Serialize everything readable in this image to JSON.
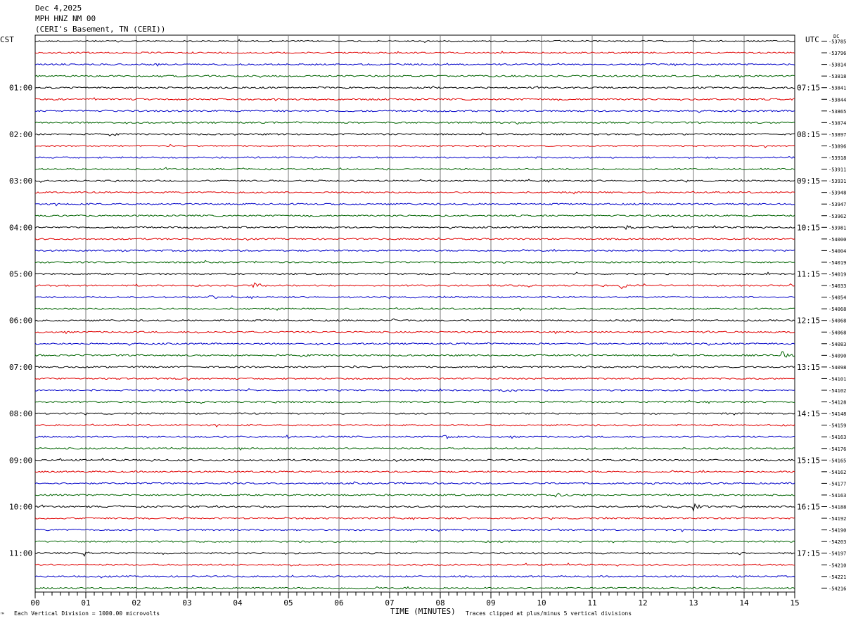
{
  "header": {
    "date": "Dec 4,2025",
    "station": "MPH HNZ NM 00",
    "location": "(CERI's Basement, TN (CERI))"
  },
  "left_tz": "CST",
  "right_tz": "UTC",
  "dc_label": "DC",
  "footer": {
    "scale": "Each Vertical Division = 1000.00 microvolts",
    "xlabel": "TIME (MINUTES)",
    "clip": "Traces clipped at plus/minus 5 vertical divisions",
    "corner_mark": "™"
  },
  "chart_data": {
    "type": "line",
    "title": "",
    "xlabel": "TIME (MINUTES)",
    "xlim": [
      0,
      15
    ],
    "x_ticks": [
      "00",
      "01",
      "02",
      "03",
      "04",
      "05",
      "06",
      "07",
      "08",
      "09",
      "10",
      "11",
      "12",
      "13",
      "14",
      "15"
    ],
    "trace_colors": [
      "#000000",
      "#e00000",
      "#0000c8",
      "#006400"
    ],
    "left_hour_labels": [
      "01:00",
      "02:00",
      "03:00",
      "04:00",
      "05:00",
      "06:00",
      "07:00",
      "08:00",
      "09:00",
      "10:00",
      "11:00"
    ],
    "right_hour_labels": [
      "07:15",
      "08:15",
      "09:15",
      "10:15",
      "11:15",
      "12:15",
      "13:15",
      "14:15",
      "15:15",
      "16:15",
      "17:15"
    ],
    "dc_offsets": [
      "-53785",
      "-53796",
      "-53814",
      "-53818",
      "-53841",
      "-53844",
      "-53865",
      "-53874",
      "-53897",
      "-53896",
      "-53918",
      "-53911",
      "-53931",
      "-53948",
      "-53947",
      "-53962",
      "-53981",
      "-54000",
      "-54004",
      "-54019",
      "-54019",
      "-54033",
      "-54054",
      "-54068",
      "-54068",
      "-54068",
      "-54083",
      "-54090",
      "-54098",
      "-54101",
      "-54102",
      "-54128",
      "-54148",
      "-54159",
      "-54163",
      "-54176",
      "-54165",
      "-54162",
      "-54177",
      "-54163",
      "-54188",
      "-54192",
      "-54190",
      "-54203",
      "-54197",
      "-54210",
      "-54221",
      "-54216"
    ],
    "events": [
      {
        "trace": 16,
        "minute": 11.7,
        "amp": 3
      },
      {
        "trace": 21,
        "minute": 4.3,
        "amp": 6
      },
      {
        "trace": 21,
        "minute": 11.6,
        "amp": 4
      },
      {
        "trace": 22,
        "minute": 3.45,
        "amp": 3
      },
      {
        "trace": 24,
        "minute": 7.1,
        "amp": 3
      },
      {
        "trace": 25,
        "minute": 13.2,
        "amp": 3
      },
      {
        "trace": 27,
        "minute": 14.8,
        "amp": 5
      },
      {
        "trace": 30,
        "minute": 1.1,
        "amp": 3
      },
      {
        "trace": 30,
        "minute": 9.3,
        "amp": 3
      },
      {
        "trace": 34,
        "minute": 5.0,
        "amp": 3
      },
      {
        "trace": 34,
        "minute": 8.1,
        "amp": 3
      },
      {
        "trace": 39,
        "minute": 10.3,
        "amp": 5
      },
      {
        "trace": 40,
        "minute": 13.0,
        "amp": 8
      },
      {
        "trace": 44,
        "minute": 1.0,
        "amp": 3
      },
      {
        "trace": 44,
        "minute": 13.95,
        "amp": 3
      }
    ]
  }
}
